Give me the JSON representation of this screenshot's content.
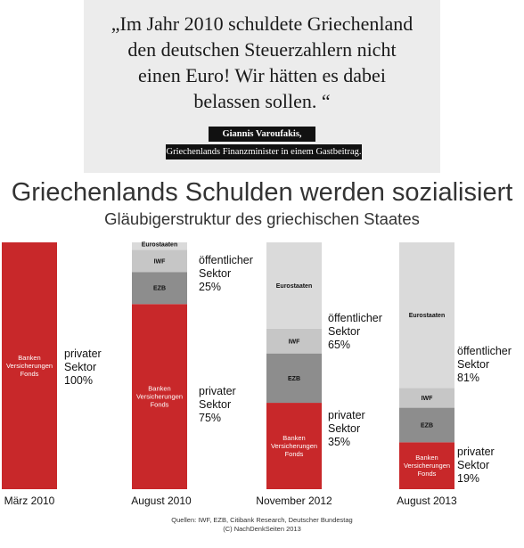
{
  "quote": {
    "lines": [
      "„Im Jahr 2010 schuldete Griechenland",
      "den deutschen Steuerzahlern nicht",
      "einen Euro! Wir hätten es dabei",
      "belassen sollen. “"
    ],
    "author": "Giannis Varoufakis,",
    "role": "Griechenlands Finanzminister in einem Gastbeitrag."
  },
  "colors": {
    "banks": "#c8282a",
    "ezb": "#8d8d8d",
    "iwf": "#c6c6c6",
    "eurostaaten": "#dadada",
    "quote_background": "#ececec"
  },
  "chart_data": {
    "type": "bar",
    "stacked": true,
    "title": "Griechenlands Schulden werden sozialisiert",
    "subtitle": "Gläubigerstruktur des griechischen Staates",
    "unit": "%",
    "ylim": [
      0,
      100
    ],
    "categories": [
      "März 2010",
      "August 2010",
      "November 2012",
      "August 2013"
    ],
    "series": [
      {
        "name": "Banken Versicherungen Fonds",
        "key": "banks",
        "values": [
          100,
          75,
          35,
          19
        ]
      },
      {
        "name": "EZB",
        "key": "ezb",
        "values": [
          0,
          13,
          20,
          14
        ]
      },
      {
        "name": "IWF",
        "key": "iwf",
        "values": [
          0,
          9,
          10,
          8
        ]
      },
      {
        "name": "Eurostaaten",
        "key": "eurostaaten",
        "values": [
          0,
          3,
          35,
          59
        ]
      }
    ],
    "segment_labels": {
      "banks": [
        "Banken",
        "Versicherungen",
        "Fonds"
      ],
      "ezb": [
        "EZB"
      ],
      "iwf": [
        "IWF"
      ],
      "eurostaaten": [
        "Eurostaaten"
      ]
    },
    "side_labels": [
      [
        {
          "lines": [
            "privater",
            "Sektor",
            "100%"
          ]
        }
      ],
      [
        {
          "lines": [
            "öffentlicher",
            "Sektor",
            "25%"
          ]
        },
        {
          "lines": [
            "privater",
            "Sektor",
            "75%"
          ]
        }
      ],
      [
        {
          "lines": [
            "öffentlicher",
            "Sektor",
            "65%"
          ]
        },
        {
          "lines": [
            "privater",
            "Sektor",
            "35%"
          ]
        }
      ],
      [
        {
          "lines": [
            "öffentlicher",
            "Sektor",
            "81%"
          ]
        },
        {
          "lines": [
            "privater",
            "Sektor",
            "19%"
          ]
        }
      ]
    ]
  },
  "sources": {
    "line1": "Quellen: IWF, EZB, Citibank Research, Deutscher Bundestag",
    "line2": "(C)  NachDenkSeiten 2013"
  }
}
